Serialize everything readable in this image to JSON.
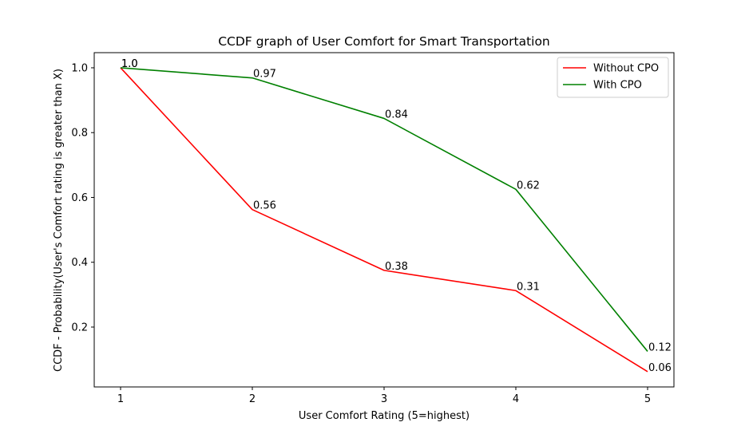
{
  "chart_data": {
    "type": "line",
    "title": "CCDF graph of User Comfort for Smart Transportation",
    "xlabel": "User Comfort Rating (5=highest)",
    "ylabel": "CCDF - Probability(User's Comfort rating is greater than X)",
    "x": [
      1,
      2,
      3,
      4,
      5
    ],
    "xticks": [
      "1",
      "2",
      "3",
      "4",
      "5"
    ],
    "yticks": [
      "0.2",
      "0.4",
      "0.6",
      "0.8",
      "1.0"
    ],
    "xlim": [
      0.8,
      5.2
    ],
    "ylim": [
      0.0153,
      1.0467
    ],
    "grid": false,
    "legend_position": "top-right",
    "series": [
      {
        "name": "Without CPO",
        "color": "#ff0000",
        "values": [
          1.0,
          0.5625,
          0.375,
          0.3125,
          0.0625
        ],
        "labels": [
          "1.0",
          "0.56",
          "0.38",
          "0.31",
          "0.06"
        ]
      },
      {
        "name": "With CPO",
        "color": "#008000",
        "values": [
          1.0,
          0.96875,
          0.84375,
          0.625,
          0.125
        ],
        "labels": [
          "1.0",
          "0.97",
          "0.84",
          "0.62",
          "0.12"
        ]
      }
    ]
  }
}
